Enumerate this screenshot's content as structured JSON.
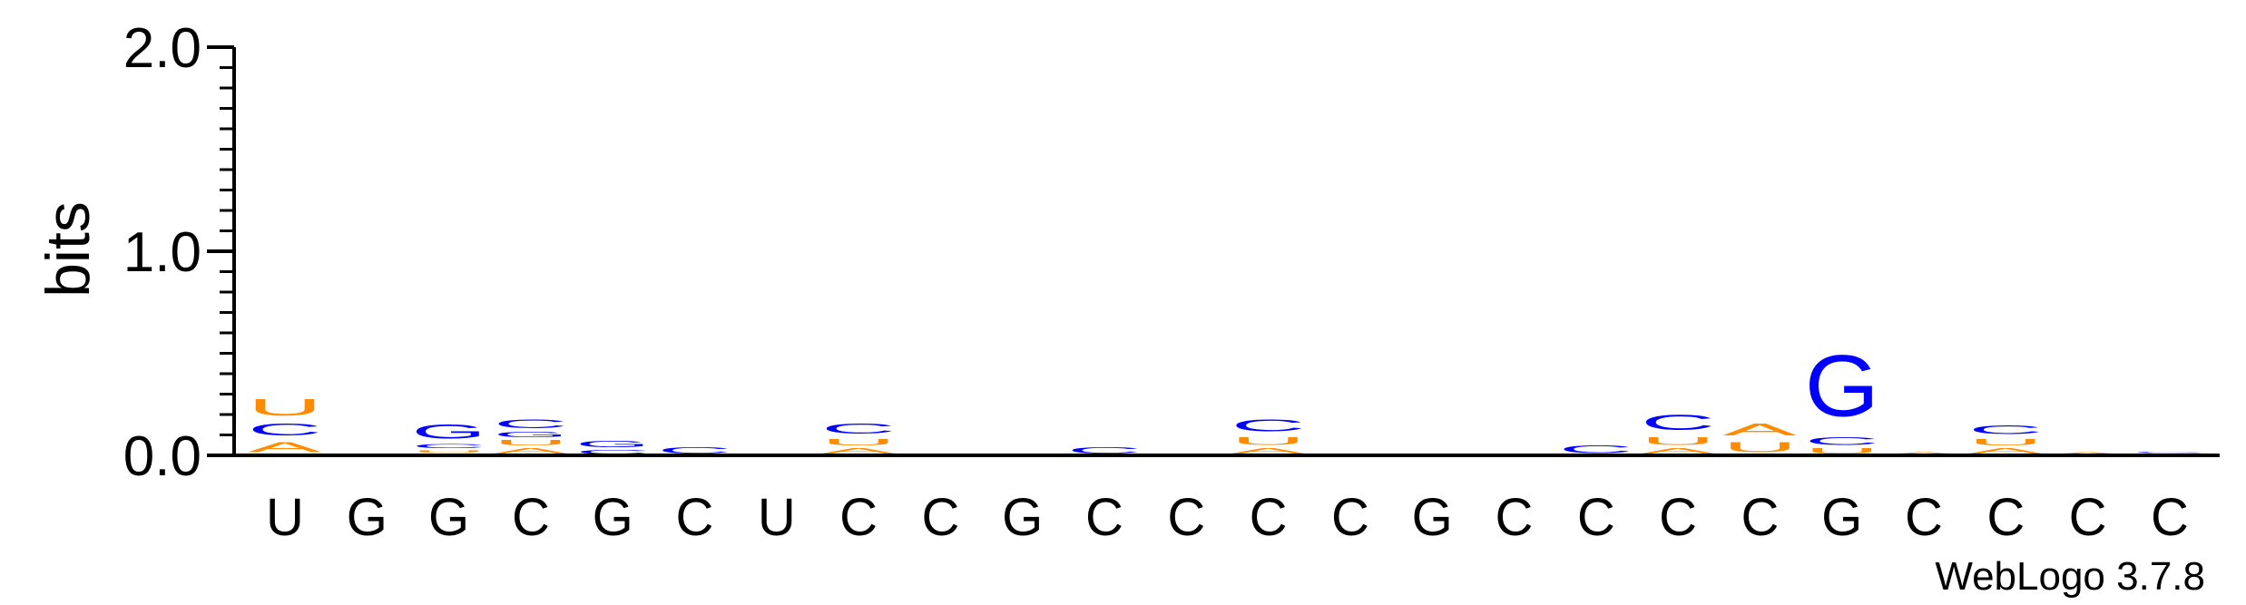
{
  "chart_data": {
    "type": "sequence-logo",
    "ylabel": "bits",
    "ylim": [
      0,
      2.0
    ],
    "yticks": [
      {
        "value": 0.0,
        "label": "0.0"
      },
      {
        "value": 1.0,
        "label": "1.0"
      },
      {
        "value": 2.0,
        "label": "2.0"
      }
    ],
    "ytick_step_minor": 0.1,
    "xlabels": [
      "U",
      "G",
      "G",
      "C",
      "G",
      "C",
      "U",
      "C",
      "C",
      "G",
      "C",
      "C",
      "C",
      "C",
      "G",
      "C",
      "C",
      "C",
      "C",
      "G",
      "C",
      "C",
      "C",
      "C"
    ],
    "colors": {
      "A": "#ff8c00",
      "C": "#0000ff",
      "G": "#0000ff",
      "U": "#ff8c00"
    },
    "stacks": [
      [
        {
          "letter": "A",
          "bits": 0.08
        },
        {
          "letter": "C",
          "bits": 0.09
        },
        {
          "letter": "U",
          "bits": 0.13
        }
      ],
      [],
      [
        {
          "letter": "A",
          "bits": 0.01
        },
        {
          "letter": "U",
          "bits": 0.02
        },
        {
          "letter": "C",
          "bits": 0.03
        },
        {
          "letter": "G",
          "bits": 0.11
        }
      ],
      [
        {
          "letter": "A",
          "bits": 0.04
        },
        {
          "letter": "U",
          "bits": 0.04
        },
        {
          "letter": "G",
          "bits": 0.04
        },
        {
          "letter": "C",
          "bits": 0.07
        }
      ],
      [
        {
          "letter": "C",
          "bits": 0.03
        },
        {
          "letter": "G",
          "bits": 0.05
        }
      ],
      [
        {
          "letter": "C",
          "bits": 0.05
        }
      ],
      [],
      [
        {
          "letter": "A",
          "bits": 0.04
        },
        {
          "letter": "U",
          "bits": 0.05
        },
        {
          "letter": "C",
          "bits": 0.08
        }
      ],
      [],
      [],
      [
        {
          "letter": "C",
          "bits": 0.05
        }
      ],
      [],
      [
        {
          "letter": "A",
          "bits": 0.04
        },
        {
          "letter": "U",
          "bits": 0.06
        },
        {
          "letter": "C",
          "bits": 0.09
        }
      ],
      [],
      [],
      [],
      [
        {
          "letter": "C",
          "bits": 0.06
        }
      ],
      [
        {
          "letter": "A",
          "bits": 0.04
        },
        {
          "letter": "U",
          "bits": 0.06
        },
        {
          "letter": "C",
          "bits": 0.12
        }
      ],
      [
        {
          "letter": "U",
          "bits": 0.08
        },
        {
          "letter": "A",
          "bits": 0.09
        }
      ],
      [
        {
          "letter": "U",
          "bits": 0.04
        },
        {
          "letter": "C",
          "bits": 0.06
        },
        {
          "letter": "G",
          "bits": 0.48
        }
      ],
      [
        {
          "letter": "A",
          "bits": 0.02
        }
      ],
      [
        {
          "letter": "A",
          "bits": 0.04
        },
        {
          "letter": "U",
          "bits": 0.05
        },
        {
          "letter": "C",
          "bits": 0.07
        }
      ],
      [
        {
          "letter": "A",
          "bits": 0.02
        }
      ],
      [
        {
          "letter": "A",
          "bits": 0.01
        },
        {
          "letter": "C",
          "bits": 0.01
        }
      ]
    ],
    "credit": "WebLogo 3.7.8"
  }
}
